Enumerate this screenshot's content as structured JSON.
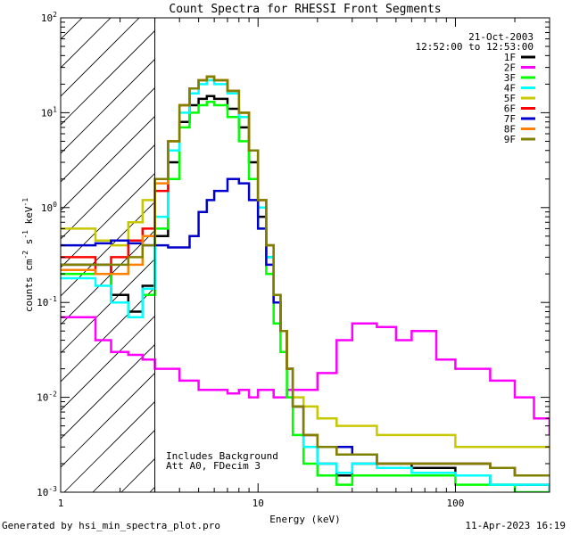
{
  "chart_data": {
    "type": "line",
    "title": "Count Spectra for RHESSI Front Segments",
    "xlabel": "Energy (keV)",
    "ylabel": "counts cm-2 s-1 keV-1",
    "xscale": "log",
    "yscale": "log",
    "xlim": [
      1,
      300
    ],
    "ylim": [
      0.001,
      100
    ],
    "x_tick_labels": [
      "1",
      "10",
      "100"
    ],
    "y_tick_labels": [
      {
        "base": "10",
        "exp": "-3"
      },
      {
        "base": "10",
        "exp": "-2"
      },
      {
        "base": "10",
        "exp": "-1"
      },
      {
        "base": "10",
        "exp": "0"
      },
      {
        "base": "10",
        "exp": "1"
      },
      {
        "base": "10",
        "exp": "2"
      }
    ],
    "date": "21-Oct-2003",
    "time_range": "12:52:00 to 12:53:00",
    "annotation_lines": [
      "Includes Background",
      "Att A0, FDecim 3"
    ],
    "hatched_region": {
      "x_from": 1,
      "x_to": 3
    },
    "legend_position": "top-right",
    "series": [
      {
        "name": "1F",
        "color": "#000000",
        "x": [
          1.0,
          1.5,
          1.8,
          2.2,
          2.6,
          3.0,
          3.5,
          4.0,
          4.5,
          5.0,
          5.5,
          6.0,
          7.0,
          8.0,
          9.0,
          10.0,
          11.0,
          12.0,
          13.0,
          14.0,
          15.0,
          17.0,
          20.0,
          25.0,
          30.0,
          40.0,
          60.0,
          100.0,
          150.0,
          200.0,
          300.0
        ],
        "y": [
          0.25,
          0.25,
          0.12,
          0.08,
          0.15,
          0.5,
          3.0,
          8.0,
          12.0,
          14.0,
          15.0,
          14.0,
          11.0,
          7.0,
          3.0,
          0.8,
          0.3,
          0.1,
          0.05,
          0.02,
          0.008,
          0.003,
          0.002,
          0.0015,
          0.002,
          0.002,
          0.0018,
          0.0015,
          0.0012,
          0.0012,
          0.001
        ]
      },
      {
        "name": "2F",
        "color": "#ff00ff",
        "x": [
          1.0,
          1.5,
          1.8,
          2.2,
          2.6,
          3.0,
          3.5,
          4.0,
          5.0,
          6.0,
          7.0,
          8.0,
          9.0,
          10.0,
          12.0,
          14.0,
          17.0,
          20.0,
          25.0,
          30.0,
          40.0,
          50.0,
          60.0,
          80.0,
          100.0,
          150.0,
          200.0,
          250.0,
          300.0
        ],
        "y": [
          0.07,
          0.04,
          0.03,
          0.028,
          0.025,
          0.02,
          0.02,
          0.015,
          0.012,
          0.012,
          0.011,
          0.012,
          0.01,
          0.012,
          0.01,
          0.012,
          0.012,
          0.018,
          0.04,
          0.06,
          0.055,
          0.04,
          0.05,
          0.025,
          0.02,
          0.015,
          0.01,
          0.006,
          0.004
        ]
      },
      {
        "name": "3F",
        "color": "#00ff00",
        "x": [
          1.0,
          1.5,
          1.8,
          2.2,
          2.6,
          3.0,
          3.5,
          4.0,
          4.5,
          5.0,
          5.5,
          6.0,
          7.0,
          8.0,
          9.0,
          10.0,
          11.0,
          12.0,
          13.0,
          14.0,
          15.0,
          17.0,
          20.0,
          25.0,
          30.0,
          40.0,
          60.0,
          100.0,
          150.0,
          200.0,
          300.0
        ],
        "y": [
          0.2,
          0.2,
          0.1,
          0.07,
          0.12,
          0.6,
          2.0,
          7.0,
          10.0,
          12.0,
          13.0,
          12.0,
          9.0,
          5.0,
          2.0,
          0.6,
          0.2,
          0.06,
          0.03,
          0.01,
          0.004,
          0.002,
          0.0015,
          0.0012,
          0.0015,
          0.0015,
          0.0015,
          0.0012,
          0.0012,
          0.001,
          0.001
        ]
      },
      {
        "name": "4F",
        "color": "#00ffff",
        "x": [
          1.0,
          1.5,
          1.8,
          2.2,
          2.6,
          3.0,
          3.5,
          4.0,
          4.5,
          5.0,
          5.5,
          6.0,
          7.0,
          8.0,
          9.0,
          10.0,
          11.0,
          12.0,
          13.0,
          14.0,
          15.0,
          17.0,
          20.0,
          25.0,
          30.0,
          40.0,
          60.0,
          100.0,
          150.0,
          200.0,
          300.0
        ],
        "y": [
          0.18,
          0.15,
          0.1,
          0.07,
          0.14,
          0.8,
          4.0,
          10.0,
          16.0,
          20.0,
          22.0,
          20.0,
          16.0,
          9.0,
          4.0,
          1.0,
          0.3,
          0.1,
          0.05,
          0.02,
          0.008,
          0.003,
          0.002,
          0.0016,
          0.002,
          0.0018,
          0.0016,
          0.0015,
          0.0012,
          0.0012,
          0.001
        ]
      },
      {
        "name": "5F",
        "color": "#c8c800",
        "x": [
          1.0,
          1.5,
          1.8,
          2.2,
          2.6,
          3.0,
          3.5,
          4.0,
          4.5,
          5.0,
          5.5,
          6.0,
          7.0,
          8.0,
          9.0,
          10.0,
          11.0,
          12.0,
          13.0,
          14.0,
          15.0,
          17.0,
          20.0,
          25.0,
          30.0,
          40.0,
          60.0,
          100.0,
          150.0,
          200.0,
          300.0
        ],
        "y": [
          0.6,
          0.45,
          0.4,
          0.7,
          1.2,
          2.0,
          5.0,
          12.0,
          18.0,
          22.0,
          24.0,
          22.0,
          17.0,
          10.0,
          4.0,
          1.2,
          0.4,
          0.12,
          0.05,
          0.02,
          0.01,
          0.008,
          0.006,
          0.005,
          0.005,
          0.004,
          0.004,
          0.003,
          0.003,
          0.003,
          0.003
        ]
      },
      {
        "name": "6F",
        "color": "#ff0000",
        "x": [
          1.0,
          1.5,
          1.8,
          2.2,
          2.6,
          3.0,
          3.5,
          4.0,
          4.5,
          5.0,
          5.5,
          6.0,
          7.0,
          8.0,
          9.0,
          10.0,
          11.0,
          12.0,
          13.0,
          14.0,
          15.0,
          17.0,
          20.0,
          25.0,
          30.0,
          40.0,
          60.0,
          100.0,
          150.0,
          200.0,
          300.0
        ],
        "y": [
          0.3,
          0.2,
          0.3,
          0.45,
          0.6,
          1.5,
          5.0,
          12.0,
          18.0,
          22.0,
          24.0,
          22.0,
          17.0,
          10.0,
          4.0,
          1.2,
          0.4,
          0.12,
          0.05,
          0.02,
          0.008,
          0.004,
          0.003,
          0.0025,
          0.0025,
          0.002,
          0.002,
          0.002,
          0.0018,
          0.0015,
          0.0015
        ]
      },
      {
        "name": "7F",
        "color": "#0000cc",
        "x": [
          1.0,
          1.5,
          1.8,
          2.2,
          2.6,
          3.0,
          3.5,
          4.0,
          4.5,
          5.0,
          5.5,
          6.0,
          7.0,
          8.0,
          9.0,
          10.0,
          11.0,
          12.0,
          13.0,
          14.0,
          15.0,
          17.0,
          20.0,
          25.0,
          30.0,
          40.0,
          60.0,
          100.0,
          150.0,
          200.0,
          300.0
        ],
        "y": [
          0.4,
          0.42,
          0.45,
          0.42,
          0.4,
          0.4,
          0.38,
          0.38,
          0.5,
          0.9,
          1.2,
          1.5,
          2.0,
          1.8,
          1.2,
          0.6,
          0.25,
          0.1,
          0.05,
          0.02,
          0.008,
          0.004,
          0.003,
          0.003,
          0.0025,
          0.002,
          0.002,
          0.002,
          0.0018,
          0.0015,
          0.0015
        ]
      },
      {
        "name": "8F",
        "color": "#ff8000",
        "x": [
          1.0,
          1.5,
          1.8,
          2.2,
          2.6,
          3.0,
          3.5,
          4.0,
          4.5,
          5.0,
          5.5,
          6.0,
          7.0,
          8.0,
          9.0,
          10.0,
          11.0,
          12.0,
          13.0,
          14.0,
          15.0,
          17.0,
          20.0,
          25.0,
          30.0,
          40.0,
          60.0,
          100.0,
          150.0,
          200.0,
          300.0
        ],
        "y": [
          0.22,
          0.2,
          0.2,
          0.25,
          0.5,
          1.8,
          5.0,
          12.0,
          18.0,
          22.0,
          24.0,
          22.0,
          17.0,
          10.0,
          4.0,
          1.2,
          0.4,
          0.12,
          0.05,
          0.02,
          0.008,
          0.004,
          0.003,
          0.0025,
          0.0025,
          0.002,
          0.002,
          0.002,
          0.0018,
          0.0015,
          0.0015
        ]
      },
      {
        "name": "9F",
        "color": "#808000",
        "x": [
          1.0,
          1.5,
          1.8,
          2.2,
          2.6,
          3.0,
          3.5,
          4.0,
          4.5,
          5.0,
          5.5,
          6.0,
          7.0,
          8.0,
          9.0,
          10.0,
          11.0,
          12.0,
          13.0,
          14.0,
          15.0,
          17.0,
          20.0,
          25.0,
          30.0,
          40.0,
          60.0,
          100.0,
          150.0,
          200.0,
          300.0
        ],
        "y": [
          0.25,
          0.25,
          0.25,
          0.3,
          0.4,
          2.0,
          5.0,
          12.0,
          18.0,
          22.0,
          24.0,
          22.0,
          17.0,
          10.0,
          4.0,
          1.2,
          0.4,
          0.12,
          0.05,
          0.02,
          0.008,
          0.004,
          0.003,
          0.0025,
          0.0025,
          0.002,
          0.002,
          0.002,
          0.0018,
          0.0015,
          0.0015
        ]
      }
    ]
  },
  "footer": {
    "generated_by": "Generated by hsi_min_spectra_plot.pro",
    "timestamp": "11-Apr-2023 16:19"
  }
}
